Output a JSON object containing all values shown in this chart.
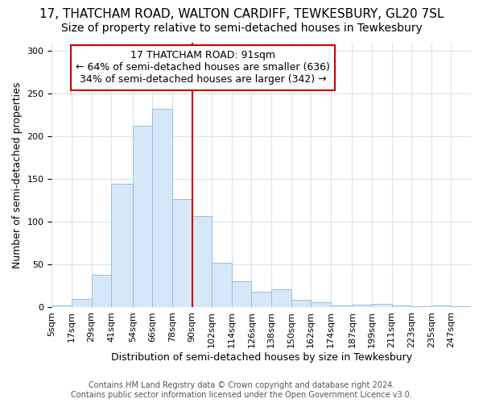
{
  "title": "17, THATCHAM ROAD, WALTON CARDIFF, TEWKESBURY, GL20 7SL",
  "subtitle": "Size of property relative to semi-detached houses in Tewkesbury",
  "xlabel": "Distribution of semi-detached houses by size in Tewkesbury",
  "ylabel": "Number of semi-detached properties",
  "bar_labels": [
    "5sqm",
    "17sqm",
    "29sqm",
    "41sqm",
    "54sqm",
    "66sqm",
    "78sqm",
    "90sqm",
    "102sqm",
    "114sqm",
    "126sqm",
    "138sqm",
    "150sqm",
    "162sqm",
    "174sqm",
    "187sqm",
    "199sqm",
    "211sqm",
    "223sqm",
    "235sqm",
    "247sqm"
  ],
  "bar_heights": [
    2,
    10,
    38,
    145,
    212,
    232,
    127,
    107,
    52,
    31,
    18,
    21,
    9,
    6,
    2,
    3,
    4,
    2,
    1,
    2,
    1
  ],
  "bin_edges": [
    5,
    17,
    29,
    41,
    54,
    66,
    78,
    90,
    102,
    114,
    126,
    138,
    150,
    162,
    174,
    187,
    199,
    211,
    223,
    235,
    247,
    259
  ],
  "vline_x": 90,
  "annotation_title": "17 THATCHAM ROAD: 91sqm",
  "annotation_line1": "← 64% of semi-detached houses are smaller (636)",
  "annotation_line2": "34% of semi-detached houses are larger (342) →",
  "bar_facecolor": "#d6e8f7",
  "bar_edgecolor": "#9abdd8",
  "vline_color": "#cc0000",
  "annotation_box_edgecolor": "#cc0000",
  "annotation_box_facecolor": "#ffffff",
  "grid_color": "#d8e4f0",
  "plot_bg_color": "#ffffff",
  "fig_bg_color": "#ffffff",
  "ylim": [
    0,
    310
  ],
  "yticks": [
    0,
    50,
    100,
    150,
    200,
    250,
    300
  ],
  "title_fontsize": 11,
  "subtitle_fontsize": 10,
  "xlabel_fontsize": 9,
  "ylabel_fontsize": 9,
  "tick_fontsize": 8,
  "annotation_fontsize": 9,
  "footer_fontsize": 7
}
